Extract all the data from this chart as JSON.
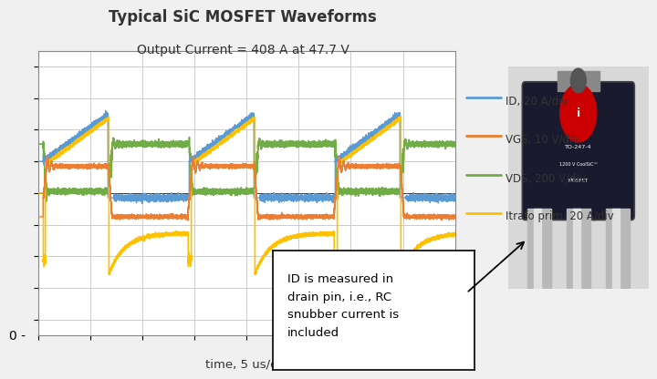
{
  "title_line1": "Typical SiC MOSFET Waveforms",
  "title_line2": "Output Current = 408 A at 47.7 V",
  "xlabel": "time, 5 us/div",
  "bg_color": "#f0f0f0",
  "plot_bg": "#ffffff",
  "grid_color": "#cccccc",
  "colors": {
    "ID": "#5b9bd5",
    "VGS": "#ed7d31",
    "VDS": "#70ad47",
    "Itrafo": "#ffc000"
  },
  "legend": [
    {
      "label": "ID, 20 A/div",
      "color": "#5b9bd5"
    },
    {
      "label": "VGS, 10 V/div",
      "color": "#ed7d31"
    },
    {
      "label": "VDS, 200 V/div",
      "color": "#70ad47"
    },
    {
      "label": "Itrafo prim, 20 A/div",
      "color": "#ffc000"
    }
  ],
  "annotation_text": "ID is measured in\ndrain pin, i.e., RC\nsnubber current is\nincluded",
  "xlim": [
    0,
    40
  ],
  "ylim": [
    -4.5,
    4.5
  ]
}
